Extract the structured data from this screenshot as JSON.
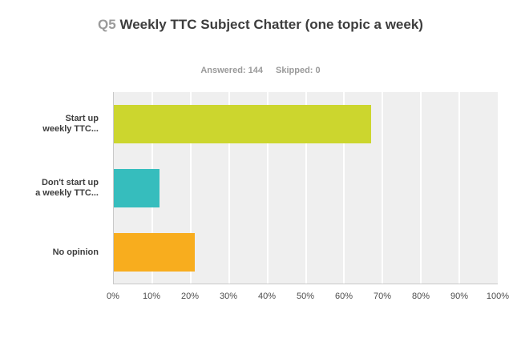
{
  "header": {
    "question_number": "Q5",
    "title": "Weekly TTC Subject Chatter (one topic a week)",
    "answered_label": "Answered:",
    "answered_value": "144",
    "skipped_label": "Skipped:",
    "skipped_value": "0"
  },
  "chart_data": {
    "type": "bar",
    "orientation": "horizontal",
    "title": "Q5 Weekly TTC Subject Chatter (one topic a week)",
    "subtitle": "Answered: 144   Skipped: 0",
    "answered": 144,
    "skipped": 0,
    "categories": [
      "Start up weekly TTC...",
      "Don't start up a weekly TTC...",
      "No opinion"
    ],
    "category_label_lines": [
      [
        "Start up",
        "weekly TTC..."
      ],
      [
        "Don't start up",
        "a weekly TTC..."
      ],
      [
        "No opinion"
      ]
    ],
    "values": [
      67,
      12,
      21
    ],
    "unit": "%",
    "xlabel": "",
    "ylabel": "",
    "xlim": [
      0,
      100
    ],
    "x_ticks": [
      0,
      10,
      20,
      30,
      40,
      50,
      60,
      70,
      80,
      90,
      100
    ],
    "x_tick_labels": [
      "0%",
      "10%",
      "20%",
      "30%",
      "40%",
      "50%",
      "60%",
      "70%",
      "80%",
      "90%",
      "100%"
    ],
    "grid": true,
    "legend": false,
    "bar_colors": [
      "#ccd62e",
      "#36bdbd",
      "#f8ad1e"
    ]
  },
  "colors": {
    "page_background": "#ffffff",
    "plot_background": "#efefef",
    "gridline": "#ffffff",
    "axis_line": "#c9c9c9",
    "title_text": "#3d3d3d",
    "question_number_text": "#9b9b9b",
    "subtitle_text": "#9a9a9a",
    "category_label_text": "#3d3d3d",
    "tick_label_text": "#4c4c4c"
  }
}
